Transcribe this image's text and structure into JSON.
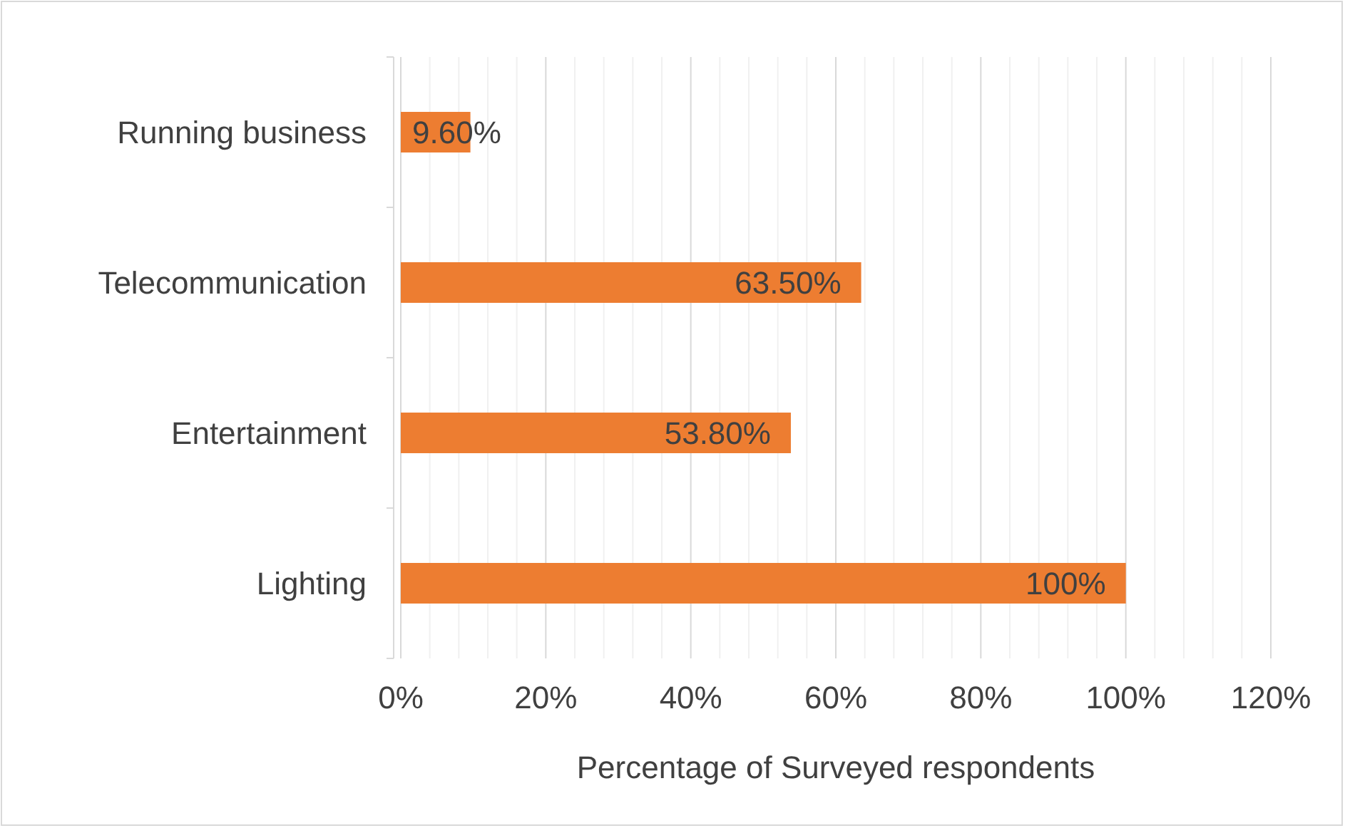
{
  "chart_data": {
    "type": "bar",
    "orientation": "horizontal",
    "xlabel": "Percentage of Surveyed respondents",
    "categories": [
      "Running business",
      "Telecommunication",
      "Entertainment",
      "Lighting"
    ],
    "values": [
      9.6,
      63.5,
      53.8,
      100
    ],
    "value_labels": [
      "9.60%",
      "63.50%",
      "53.80%",
      "100%"
    ],
    "color": "#ed7d31",
    "xlim": [
      0,
      120
    ],
    "xticks": [
      {
        "value": 0,
        "label": "0%"
      },
      {
        "value": 4,
        "label": null
      },
      {
        "value": 8,
        "label": null
      },
      {
        "value": 12,
        "label": null
      },
      {
        "value": 16,
        "label": null
      },
      {
        "value": 20,
        "label": "20%"
      },
      {
        "value": 24,
        "label": null
      },
      {
        "value": 28,
        "label": null
      },
      {
        "value": 32,
        "label": null
      },
      {
        "value": 36,
        "label": null
      },
      {
        "value": 40,
        "label": "40%"
      },
      {
        "value": 44,
        "label": null
      },
      {
        "value": 48,
        "label": null
      },
      {
        "value": 52,
        "label": null
      },
      {
        "value": 56,
        "label": null
      },
      {
        "value": 60,
        "label": "60%"
      },
      {
        "value": 64,
        "label": null
      },
      {
        "value": 68,
        "label": null
      },
      {
        "value": 72,
        "label": null
      },
      {
        "value": 76,
        "label": null
      },
      {
        "value": 80,
        "label": "80%"
      },
      {
        "value": 84,
        "label": null
      },
      {
        "value": 88,
        "label": null
      },
      {
        "value": 92,
        "label": null
      },
      {
        "value": 96,
        "label": null
      },
      {
        "value": 100,
        "label": "100%"
      },
      {
        "value": 104,
        "label": null
      },
      {
        "value": 108,
        "label": null
      },
      {
        "value": 112,
        "label": null
      },
      {
        "value": 116,
        "label": null
      },
      {
        "value": 120,
        "label": "120%"
      }
    ],
    "grid": "x"
  }
}
